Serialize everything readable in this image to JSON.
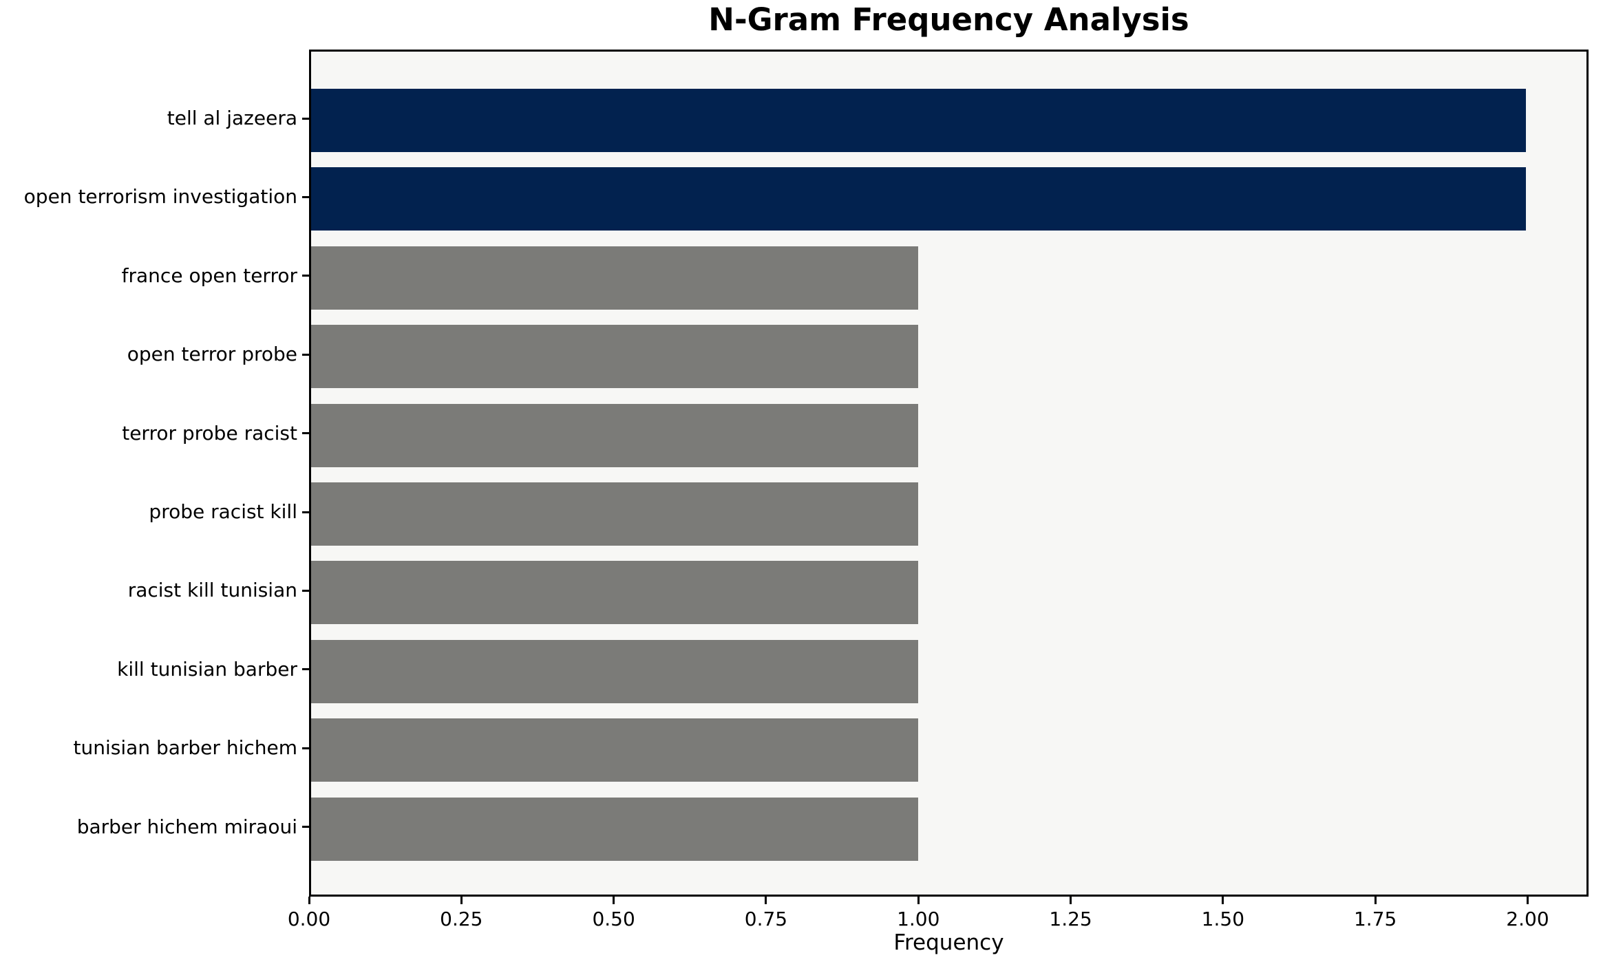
{
  "chart_data": {
    "type": "bar",
    "orientation": "horizontal",
    "title": "N-Gram Frequency Analysis",
    "xlabel": "Frequency",
    "ylabel": "",
    "categories": [
      "tell al jazeera",
      "open terrorism investigation",
      "france open terror",
      "open terror probe",
      "terror probe racist",
      "probe racist kill",
      "racist kill tunisian",
      "kill tunisian barber",
      "tunisian barber hichem",
      "barber hichem miraoui"
    ],
    "values": [
      2,
      2,
      1,
      1,
      1,
      1,
      1,
      1,
      1,
      1
    ],
    "bar_colors": [
      "#02224f",
      "#02224f",
      "#7b7b78",
      "#7b7b78",
      "#7b7b78",
      "#7b7b78",
      "#7b7b78",
      "#7b7b78",
      "#7b7b78",
      "#7b7b78"
    ],
    "xlim": [
      0,
      2.1
    ],
    "xticks": [
      0,
      0.25,
      0.5,
      0.75,
      1.0,
      1.25,
      1.5,
      1.75,
      2.0
    ],
    "xtick_labels": [
      "0.00",
      "0.25",
      "0.50",
      "0.75",
      "1.00",
      "1.25",
      "1.50",
      "1.75",
      "2.00"
    ],
    "grid": false,
    "legend": null,
    "colors": {
      "highlight_bar": "#02224f",
      "regular_bar": "#7b7b78",
      "plot_background": "#f7f7f5",
      "figure_background": "#ffffff",
      "axis": "#000000",
      "text": "#000000"
    }
  }
}
